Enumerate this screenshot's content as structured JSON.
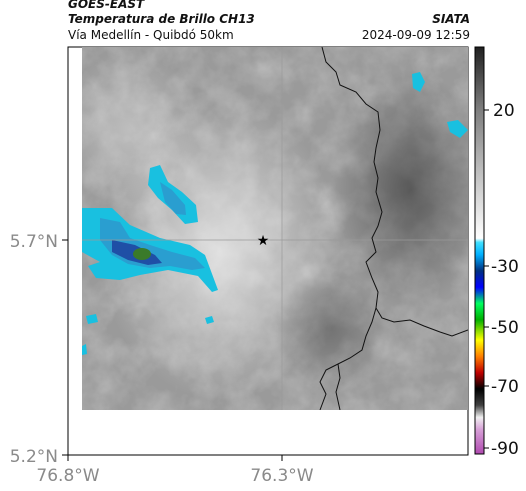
{
  "header": {
    "satellite": "GOES-EAST",
    "product": "Temperatura de Brillo CH13",
    "route": "Vía Medellín - Quibdó 50km",
    "org": "SIATA",
    "timestamp": "2024-09-09 12:59"
  },
  "axes": {
    "y_ticks": [
      {
        "label": "5.7°N",
        "lat": 5.7
      },
      {
        "label": "5.2°N",
        "lat": 5.2
      }
    ],
    "x_ticks": [
      {
        "label": "76.8°W",
        "lon": -76.8
      },
      {
        "label": "76.3°W",
        "lon": -76.3
      }
    ]
  },
  "colorbar": {
    "ticks": [
      "20",
      "-30",
      "-50",
      "-70",
      "-90"
    ],
    "tick_values": [
      20,
      -30,
      -50,
      -70,
      -90
    ]
  },
  "marker": {
    "name": "star-marker",
    "lat": 5.7,
    "lon": -76.35
  },
  "colors": {
    "cloud_cyan": "#19c0e0",
    "cloud_blue": "#1f4fa6",
    "cloud_green": "#3a7a2a",
    "border_line": "#111111"
  }
}
